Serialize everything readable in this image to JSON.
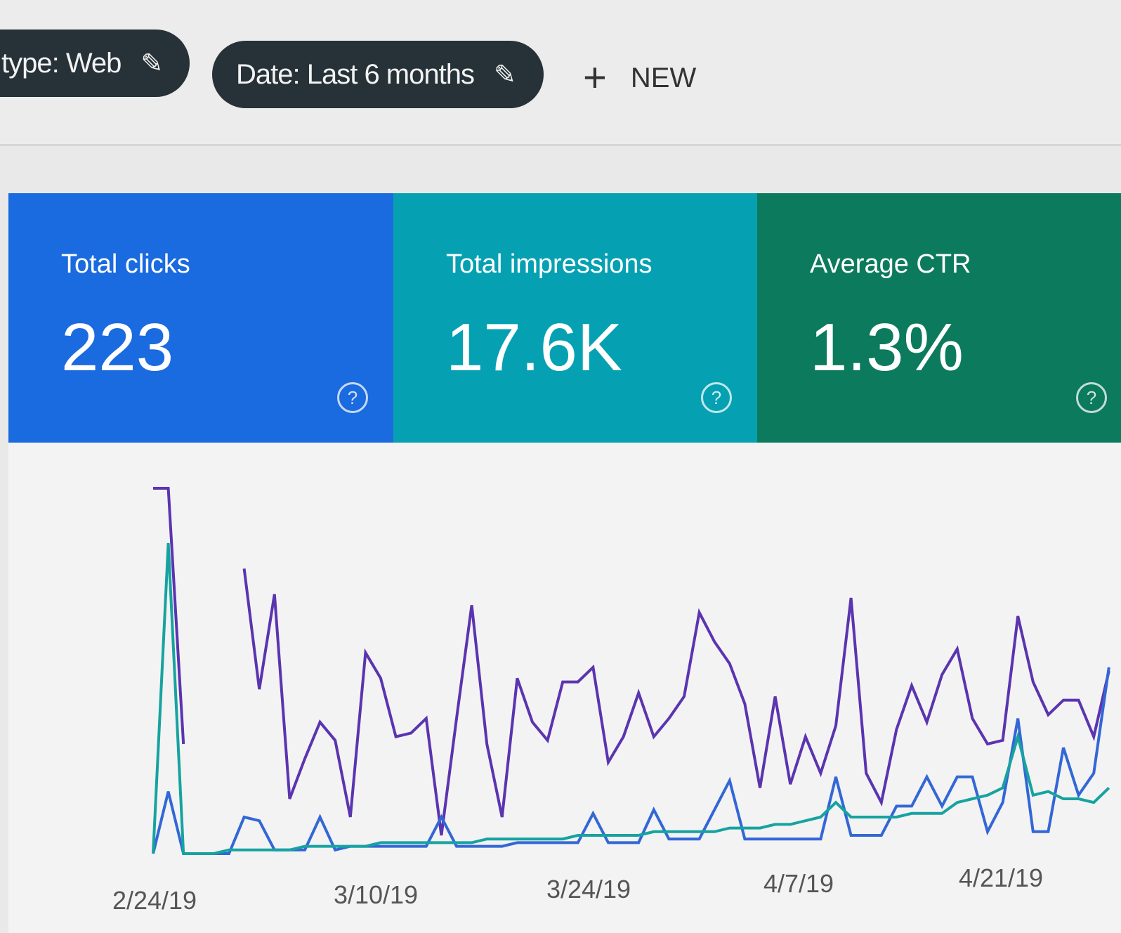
{
  "filters": [
    {
      "label": "type: Web",
      "icon": "pencil-icon"
    },
    {
      "label": "Date: Last 6 months",
      "icon": "pencil-icon"
    }
  ],
  "new_button": {
    "label": "NEW",
    "icon": "plus-icon"
  },
  "cards": [
    {
      "label": "Total clicks",
      "value": "223",
      "color": "#1a6ae0",
      "icon": "help-icon",
      "help": "?"
    },
    {
      "label": "Total impressions",
      "value": "17.6K",
      "color": "#05a1b2",
      "icon": "help-icon",
      "help": "?"
    },
    {
      "label": "Average CTR",
      "value": "1.3%",
      "color": "#0c7a5c",
      "icon": "help-icon",
      "help": "?"
    }
  ],
  "chart_data": {
    "type": "line",
    "grid": false,
    "x_tick_labels": [
      "2/24/19",
      "3/10/19",
      "3/24/19",
      "4/7/19",
      "4/21/19"
    ],
    "x_range": [
      "2/24/19",
      "4/28/19"
    ],
    "y_range_relative": [
      0,
      100
    ],
    "series": [
      {
        "color": "#5b34b0",
        "values": [
          100,
          100,
          30,
          null,
          null,
          null,
          78,
          45,
          71,
          15,
          26,
          36,
          31,
          10,
          55,
          48,
          32,
          33,
          37,
          5,
          37,
          68,
          30,
          10,
          48,
          36,
          31,
          47,
          47,
          51,
          25,
          32,
          44,
          32,
          37,
          43,
          66,
          58,
          52,
          41,
          18,
          43,
          19,
          32,
          22,
          35,
          70,
          22,
          14,
          34,
          46,
          36,
          49,
          56,
          37,
          30,
          31,
          65,
          47,
          38,
          42,
          42,
          32,
          50
        ]
      },
      {
        "color": "#3367d6",
        "values": [
          0,
          17,
          0,
          0,
          0,
          0,
          10,
          9,
          1,
          1,
          1,
          10,
          1,
          2,
          2,
          2,
          2,
          2,
          2,
          10,
          2,
          2,
          2,
          2,
          3,
          3,
          3,
          3,
          3,
          11,
          3,
          3,
          3,
          12,
          4,
          4,
          4,
          12,
          20,
          4,
          4,
          4,
          4,
          4,
          4,
          21,
          5,
          5,
          5,
          13,
          13,
          21,
          13,
          21,
          21,
          6,
          14,
          37,
          6,
          6,
          29,
          16,
          22,
          51
        ]
      },
      {
        "color": "#16a3a0",
        "values": [
          0,
          85,
          0,
          0,
          0,
          1,
          1,
          1,
          1,
          1,
          2,
          2,
          2,
          2,
          2,
          3,
          3,
          3,
          3,
          3,
          3,
          3,
          4,
          4,
          4,
          4,
          4,
          4,
          5,
          5,
          5,
          5,
          5,
          6,
          6,
          6,
          6,
          6,
          7,
          7,
          7,
          8,
          8,
          9,
          10,
          14,
          10,
          10,
          10,
          10,
          11,
          11,
          11,
          14,
          15,
          16,
          18,
          32,
          16,
          17,
          15,
          15,
          14,
          18
        ]
      }
    ]
  }
}
